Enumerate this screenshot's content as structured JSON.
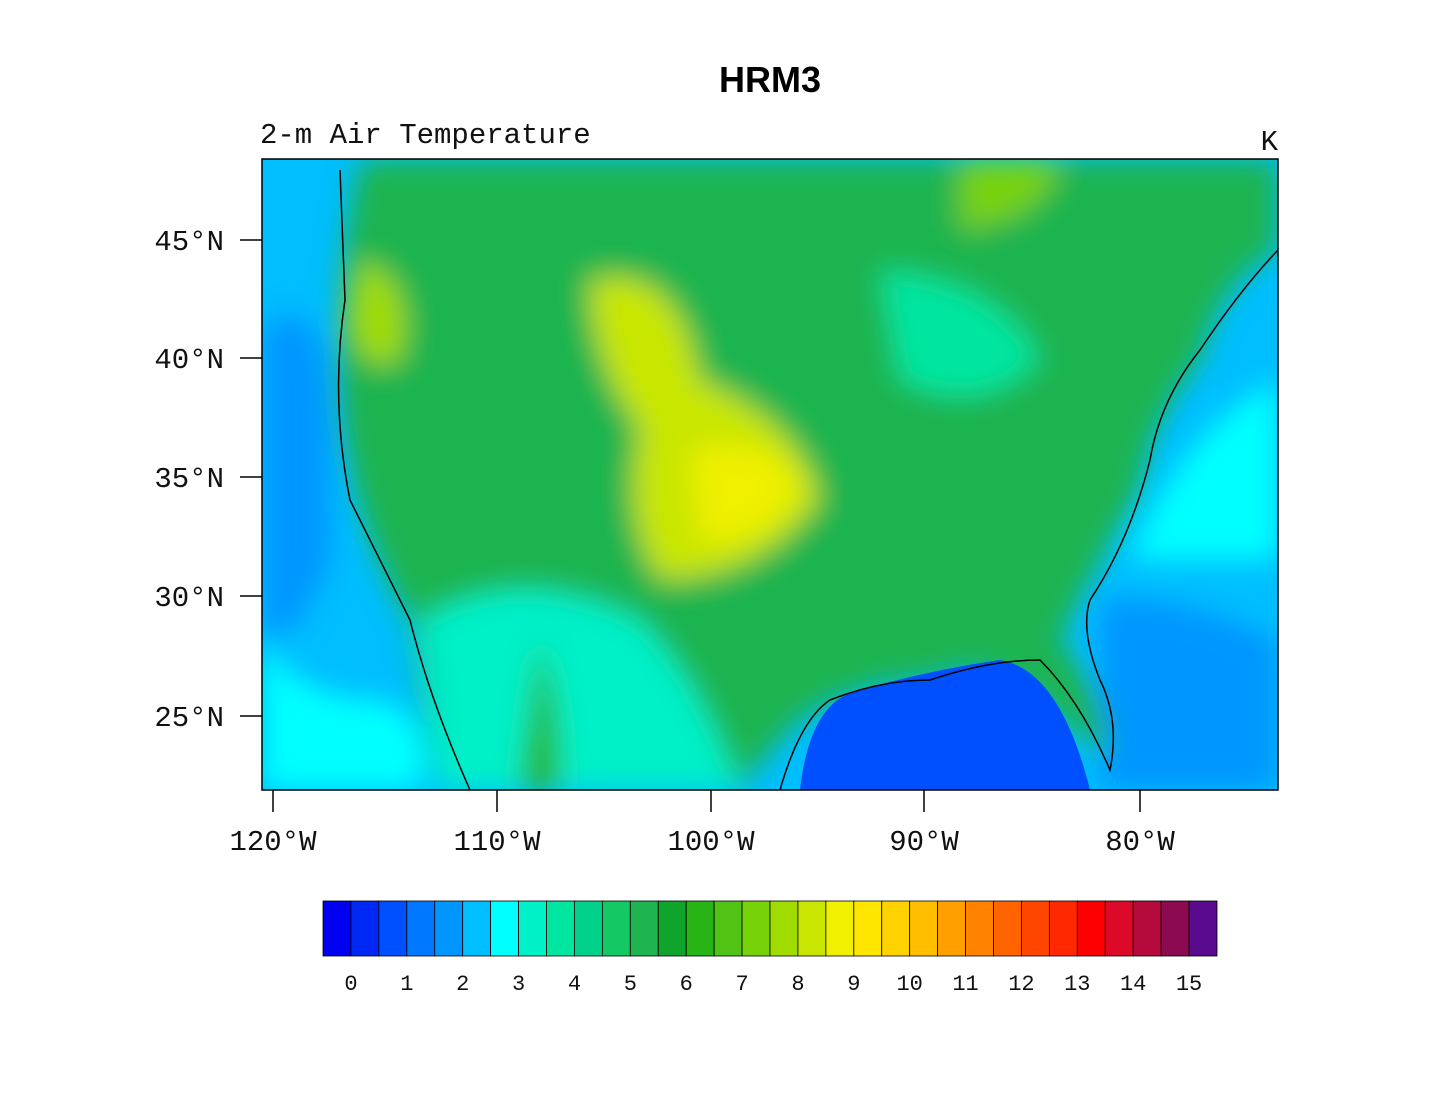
{
  "header": {
    "title": "HRM3",
    "subtitle": "2-m Air Temperature",
    "units": "K"
  },
  "axes": {
    "lat_ticks": [
      "45°N",
      "40°N",
      "35°N",
      "30°N",
      "25°N"
    ],
    "lon_ticks": [
      "120°W",
      "110°W",
      "100°W",
      "90°W",
      "80°W"
    ]
  },
  "colorbar": {
    "labels": [
      0,
      1,
      2,
      3,
      4,
      5,
      6,
      7,
      8,
      9,
      10,
      11,
      12,
      13,
      14,
      15
    ],
    "colors": [
      "#0000f0",
      "#0028f5",
      "#0050ff",
      "#0078ff",
      "#0096ff",
      "#00beff",
      "#00ffff",
      "#00f0c8",
      "#00e6a0",
      "#00d28c",
      "#14c864",
      "#1eb450",
      "#0fa52d",
      "#28b414",
      "#50c314",
      "#78d20a",
      "#a0dc00",
      "#c8e600",
      "#f0f000",
      "#ffe600",
      "#ffd200",
      "#ffbe00",
      "#ffa000",
      "#ff8200",
      "#ff6400",
      "#ff4600",
      "#ff2800",
      "#ff0000",
      "#dc0a28",
      "#b40a3c",
      "#8c0a50",
      "#5a0a8c"
    ]
  }
}
